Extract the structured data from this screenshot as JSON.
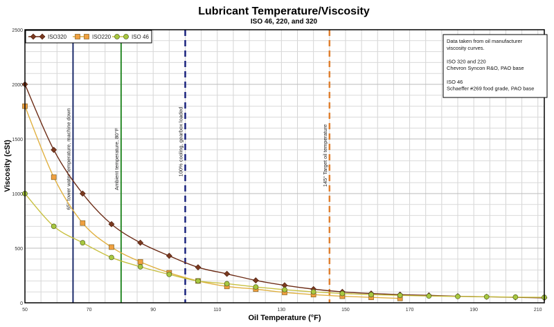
{
  "chart_data": {
    "type": "line",
    "title": "Lubricant Temperature/Viscosity",
    "subtitle": "ISO 46, 220, and 320",
    "xlabel": "Oil Temperature (°F)",
    "ylabel": "Viscosity (cSt)",
    "xlim": [
      50,
      212
    ],
    "ylim": [
      0,
      2500
    ],
    "xticks": [
      50,
      70,
      90,
      110,
      130,
      150,
      170,
      190,
      210
    ],
    "yticks": [
      0,
      500,
      1000,
      1500,
      2000,
      2500
    ],
    "grid": true,
    "legend_position": "top-left",
    "series": [
      {
        "name": "ISO320",
        "color": "#6b2a14",
        "marker": "diamond",
        "x": [
          50,
          59,
          68,
          77,
          86,
          95,
          104,
          113,
          122,
          131,
          140,
          149,
          158,
          167,
          176,
          185,
          194,
          203,
          212
        ],
        "y": [
          2000,
          1400,
          1000,
          720,
          550,
          430,
          325,
          265,
          205,
          160,
          125,
          100,
          85,
          75,
          68,
          60,
          55,
          50,
          45
        ]
      },
      {
        "name": "ISO220",
        "color": "#e0b040",
        "marker": "square",
        "marker_color": "#f0a040",
        "x": [
          50,
          59,
          68,
          77,
          86,
          95,
          104,
          113,
          122,
          131,
          140,
          149,
          158,
          167
        ],
        "y": [
          1800,
          1150,
          730,
          510,
          375,
          275,
          200,
          150,
          125,
          95,
          75,
          60,
          50,
          40
        ]
      },
      {
        "name": "ISO 46",
        "color": "#c8c040",
        "marker": "circle",
        "marker_color": "#a8c840",
        "x": [
          50,
          59,
          68,
          77,
          86,
          95,
          104,
          113,
          122,
          131,
          140,
          149,
          158,
          167,
          176,
          185,
          194,
          203,
          212
        ],
        "y": [
          1000,
          700,
          550,
          415,
          330,
          260,
          200,
          175,
          145,
          120,
          100,
          85,
          75,
          68,
          62,
          58,
          55,
          52,
          50
        ]
      }
    ],
    "reference_lines": [
      {
        "x": 65,
        "label": "65° tower water temperature, machine down",
        "color": "#1a2a6a",
        "style": "solid"
      },
      {
        "x": 80,
        "label": "Ambient temperature, 80°F",
        "color": "#2a8a2a",
        "style": "solid"
      },
      {
        "x": 100,
        "label": "100% cooling, gearbox loaded",
        "color": "#1a237e",
        "style": "dashed"
      },
      {
        "x": 145,
        "label": "145° Target oil temperature",
        "color": "#e08030",
        "style": "dashed"
      }
    ],
    "annotation": [
      "Data taken from oil manufacturer",
      "viscosity curves.",
      "",
      "ISO 320 and 220",
      "Chevron Syncon R&O, PAO base",
      "",
      "ISO 46",
      "Schaeffer #269 food grade, PAO base"
    ]
  }
}
